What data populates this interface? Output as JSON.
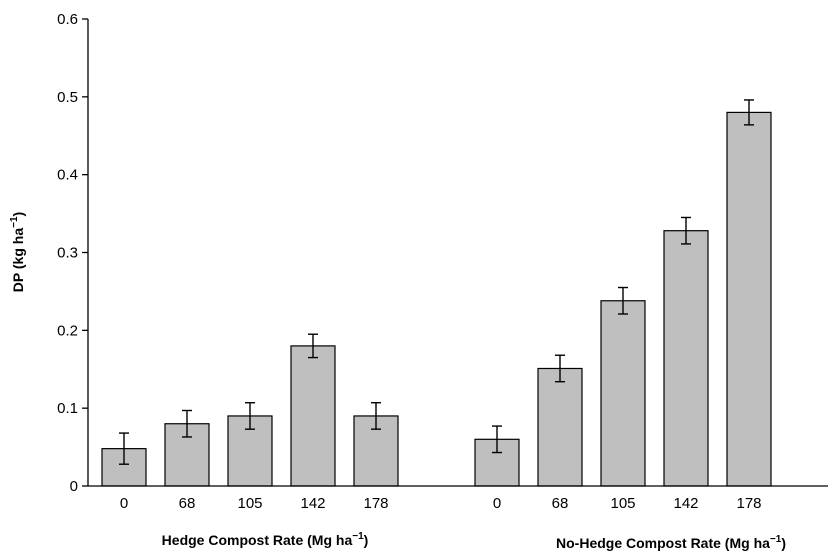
{
  "chart_data": {
    "type": "bar",
    "ylabel_main": "DP (kg ha",
    "ylabel_sup": "−1",
    "ylabel_close": ")",
    "ylim": [
      0,
      0.6
    ],
    "yticks": [
      "0",
      "0.1",
      "0.2",
      "0.3",
      "0.4",
      "0.5",
      "0.6"
    ],
    "grid": false,
    "bar_color": "#bfbfbf",
    "groups": [
      {
        "xlabel_main": "Hedge Compost Rate (Mg ha",
        "xlabel_sup": "−1",
        "xlabel_close": ")",
        "categories": [
          "0",
          "68",
          "105",
          "142",
          "178"
        ],
        "values": [
          0.048,
          0.08,
          0.09,
          0.18,
          0.09
        ],
        "errors": [
          0.02,
          0.017,
          0.017,
          0.015,
          0.017
        ]
      },
      {
        "xlabel_main": "No-Hedge Compost Rate (Mg ha",
        "xlabel_sup": "−1",
        "xlabel_close": ")",
        "categories": [
          "0",
          "68",
          "105",
          "142",
          "178"
        ],
        "values": [
          0.06,
          0.151,
          0.238,
          0.328,
          0.48
        ],
        "errors": [
          0.017,
          0.017,
          0.017,
          0.017,
          0.016
        ]
      }
    ]
  }
}
